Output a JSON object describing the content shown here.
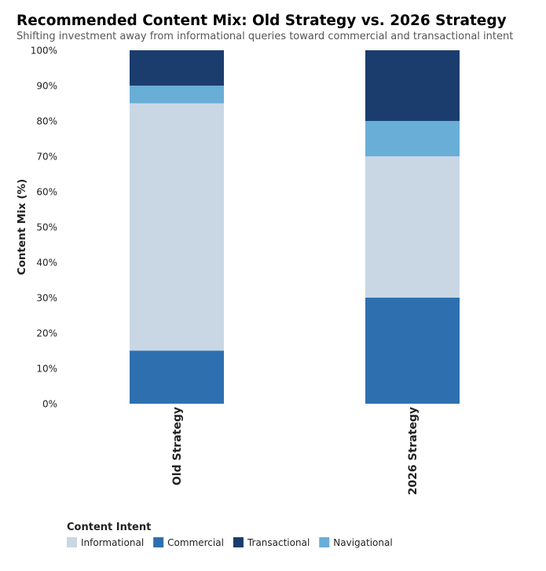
{
  "chart_data": {
    "type": "bar",
    "stacked": true,
    "title": "Recommended Content Mix: Old Strategy vs. 2026 Strategy",
    "subtitle": "Shifting investment away from informational queries toward commercial and transactional intent",
    "xlabel": "",
    "ylabel": "Content Mix (%)",
    "ylim": [
      0,
      100
    ],
    "yticks": [
      "0%",
      "10%",
      "20%",
      "30%",
      "40%",
      "50%",
      "60%",
      "70%",
      "80%",
      "90%",
      "100%"
    ],
    "categories": [
      "Old Strategy",
      "2026 Strategy"
    ],
    "stack_order": [
      "Commercial",
      "Informational",
      "Navigational",
      "Transactional"
    ],
    "series": [
      {
        "name": "Informational",
        "values": [
          70,
          40
        ],
        "color": "#c9d7e5"
      },
      {
        "name": "Commercial",
        "values": [
          15,
          30
        ],
        "color": "#2e70af"
      },
      {
        "name": "Transactional",
        "values": [
          10,
          20
        ],
        "color": "#1b3d6e"
      },
      {
        "name": "Navigational",
        "values": [
          5,
          10
        ],
        "color": "#69aed7"
      }
    ],
    "legend_title": "Content Intent",
    "legend_position": "bottom-left",
    "grid": false
  }
}
